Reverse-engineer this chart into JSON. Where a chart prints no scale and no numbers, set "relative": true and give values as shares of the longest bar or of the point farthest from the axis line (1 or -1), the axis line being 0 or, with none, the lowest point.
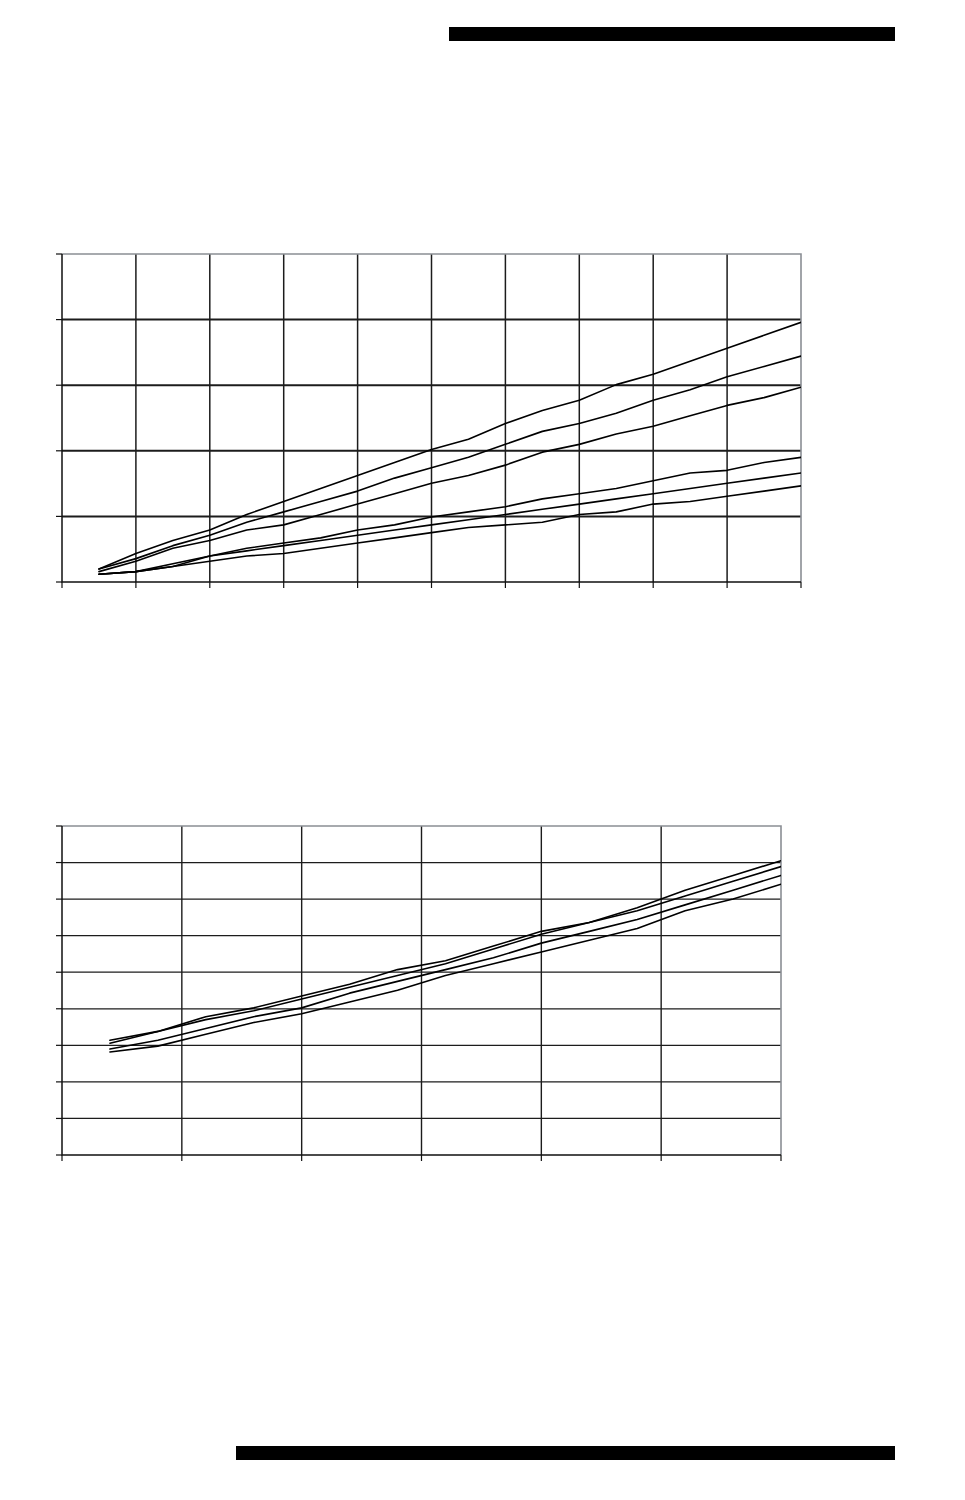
{
  "chart_data": [
    {
      "type": "line",
      "relative": true,
      "grid": true,
      "categories": [
        null,
        null,
        null,
        null,
        null,
        null,
        null,
        null,
        null,
        null,
        null,
        null,
        null,
        null,
        null,
        null,
        null,
        null,
        null,
        null
      ],
      "series": [
        {
          "color": "#000000",
          "values": [
            0.05,
            0.11,
            0.16,
            0.2,
            0.26,
            0.31,
            0.36,
            0.41,
            0.46,
            0.51,
            0.55,
            0.61,
            0.66,
            0.7,
            0.76,
            0.8,
            0.85,
            0.9,
            0.95,
            1.0
          ]
        },
        {
          "color": "#000000",
          "values": [
            0.05,
            0.09,
            0.14,
            0.18,
            0.23,
            0.27,
            0.31,
            0.35,
            0.4,
            0.44,
            0.48,
            0.53,
            0.58,
            0.61,
            0.65,
            0.7,
            0.74,
            0.79,
            0.83,
            0.87
          ]
        },
        {
          "color": "#000000",
          "values": [
            0.04,
            0.08,
            0.13,
            0.16,
            0.2,
            0.22,
            0.26,
            0.3,
            0.34,
            0.38,
            0.41,
            0.45,
            0.5,
            0.53,
            0.57,
            0.6,
            0.64,
            0.68,
            0.71,
            0.75
          ]
        },
        {
          "color": "#000000",
          "values": [
            0.03,
            0.04,
            0.07,
            0.1,
            0.13,
            0.15,
            0.17,
            0.2,
            0.22,
            0.25,
            0.27,
            0.29,
            0.32,
            0.34,
            0.36,
            0.39,
            0.42,
            0.43,
            0.46,
            0.48
          ]
        },
        {
          "color": "#000000",
          "values": [
            0.03,
            0.04,
            0.06,
            0.1,
            0.12,
            0.14,
            0.16,
            0.18,
            0.2,
            0.22,
            0.24,
            0.26,
            0.28,
            0.3,
            0.32,
            0.34,
            0.36,
            0.38,
            0.4,
            0.42
          ]
        },
        {
          "color": "#000000",
          "values": [
            0.03,
            0.04,
            0.06,
            0.08,
            0.1,
            0.11,
            0.13,
            0.15,
            0.17,
            0.19,
            0.21,
            0.22,
            0.23,
            0.26,
            0.27,
            0.3,
            0.31,
            0.33,
            0.35,
            0.37
          ]
        }
      ]
    },
    {
      "type": "line",
      "relative": true,
      "grid": true,
      "categories": [
        null,
        null,
        null,
        null,
        null,
        null,
        null,
        null,
        null,
        null,
        null,
        null,
        null,
        null,
        null
      ],
      "series": [
        {
          "color": "#000000",
          "values": [
            0.39,
            0.42,
            0.47,
            0.5,
            0.54,
            0.58,
            0.63,
            0.66,
            0.71,
            0.76,
            0.79,
            0.84,
            0.9,
            0.95,
            1.0
          ]
        },
        {
          "color": "#000000",
          "values": [
            0.38,
            0.42,
            0.46,
            0.49,
            0.53,
            0.57,
            0.61,
            0.65,
            0.7,
            0.75,
            0.79,
            0.83,
            0.88,
            0.93,
            0.98
          ]
        },
        {
          "color": "#000000",
          "values": [
            0.36,
            0.39,
            0.43,
            0.47,
            0.5,
            0.55,
            0.59,
            0.63,
            0.67,
            0.72,
            0.76,
            0.8,
            0.85,
            0.9,
            0.95
          ]
        },
        {
          "color": "#000000",
          "values": [
            0.35,
            0.37,
            0.41,
            0.45,
            0.48,
            0.52,
            0.56,
            0.61,
            0.65,
            0.69,
            0.73,
            0.77,
            0.83,
            0.87,
            0.92
          ]
        }
      ]
    }
  ]
}
